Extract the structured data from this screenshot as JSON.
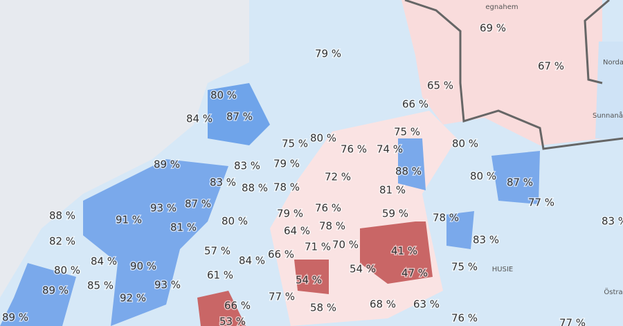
{
  "map": {
    "labels": [
      "79 %",
      "69 %",
      "67 %",
      "65 %",
      "66 %",
      "80 %",
      "87 %",
      "84 %",
      "75 %",
      "80 %",
      "75 %",
      "76 %",
      "74 %",
      "80 %",
      "89 %",
      "83 %",
      "79 %",
      "72 %",
      "88 %",
      "80 %",
      "87 %",
      "83 %",
      "88 %",
      "78 %",
      "81 %",
      "77 %",
      "88 %",
      "87 %",
      "93 %",
      "79 %",
      "76 %",
      "59 %",
      "78 %",
      "83 %",
      "91 %",
      "81 %",
      "80 %",
      "64 %",
      "78 %",
      "82 %",
      "57 %",
      "71 %",
      "70 %",
      "41 %",
      "83 %",
      "66 %",
      "84 %",
      "84 %",
      "90 %",
      "80 %",
      "54 %",
      "47 %",
      "75 %",
      "61 %",
      "54 %",
      "85 %",
      "93 %",
      "89 %",
      "92 %",
      "77 %",
      "66 %",
      "58 %",
      "68 %",
      "63 %",
      "76 %",
      "89 %",
      "53 %",
      "77 %"
    ],
    "places": [
      "egnahem",
      "Norda",
      "Sunnanå",
      "HUSIE",
      "Östra"
    ]
  }
}
